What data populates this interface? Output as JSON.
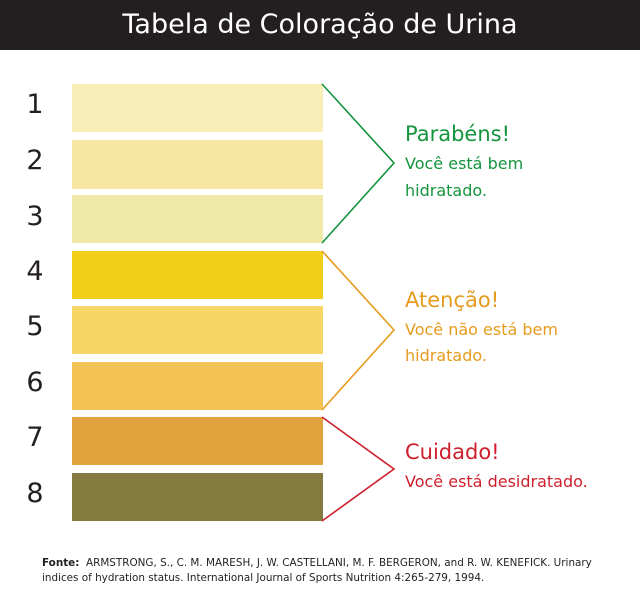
{
  "title": "Tabela de Coloração de Urina",
  "rows": [
    {
      "number": "1",
      "color": "#f9eeb7"
    },
    {
      "number": "2",
      "color": "#f7e6a1"
    },
    {
      "number": "3",
      "color": "#efe9a9"
    },
    {
      "number": "4",
      "color": "#f1cf18"
    },
    {
      "number": "5",
      "color": "#f7d667"
    },
    {
      "number": "6",
      "color": "#f4c355"
    },
    {
      "number": "7",
      "color": "#e2a33e"
    },
    {
      "number": "8",
      "color": "#857a40"
    }
  ],
  "groups": [
    {
      "heading": "Parabéns!",
      "line1": "Você está bem",
      "line2": "hidratado.",
      "color": "#14943c"
    },
    {
      "heading": "Atenção!",
      "line1": "Você não está bem",
      "line2": "hidratado.",
      "color": "#e69b1d"
    },
    {
      "heading": "Cuidado!",
      "line1": "Você está desidratado.",
      "color": "#cf1f2c"
    }
  ],
  "source": {
    "label": "Fonte:",
    "line1": "ARMSTRONG, S., C. M. MARESH, J. W. CASTELLANI, M. F. BERGERON, and R. W. KENEFICK. Urinary",
    "line2": "indices of hydration status. International Journal of Sports Nutrition 4:265-279, 1994."
  },
  "colors": {
    "title_bar": "#231f20",
    "background": "#ffffff"
  }
}
